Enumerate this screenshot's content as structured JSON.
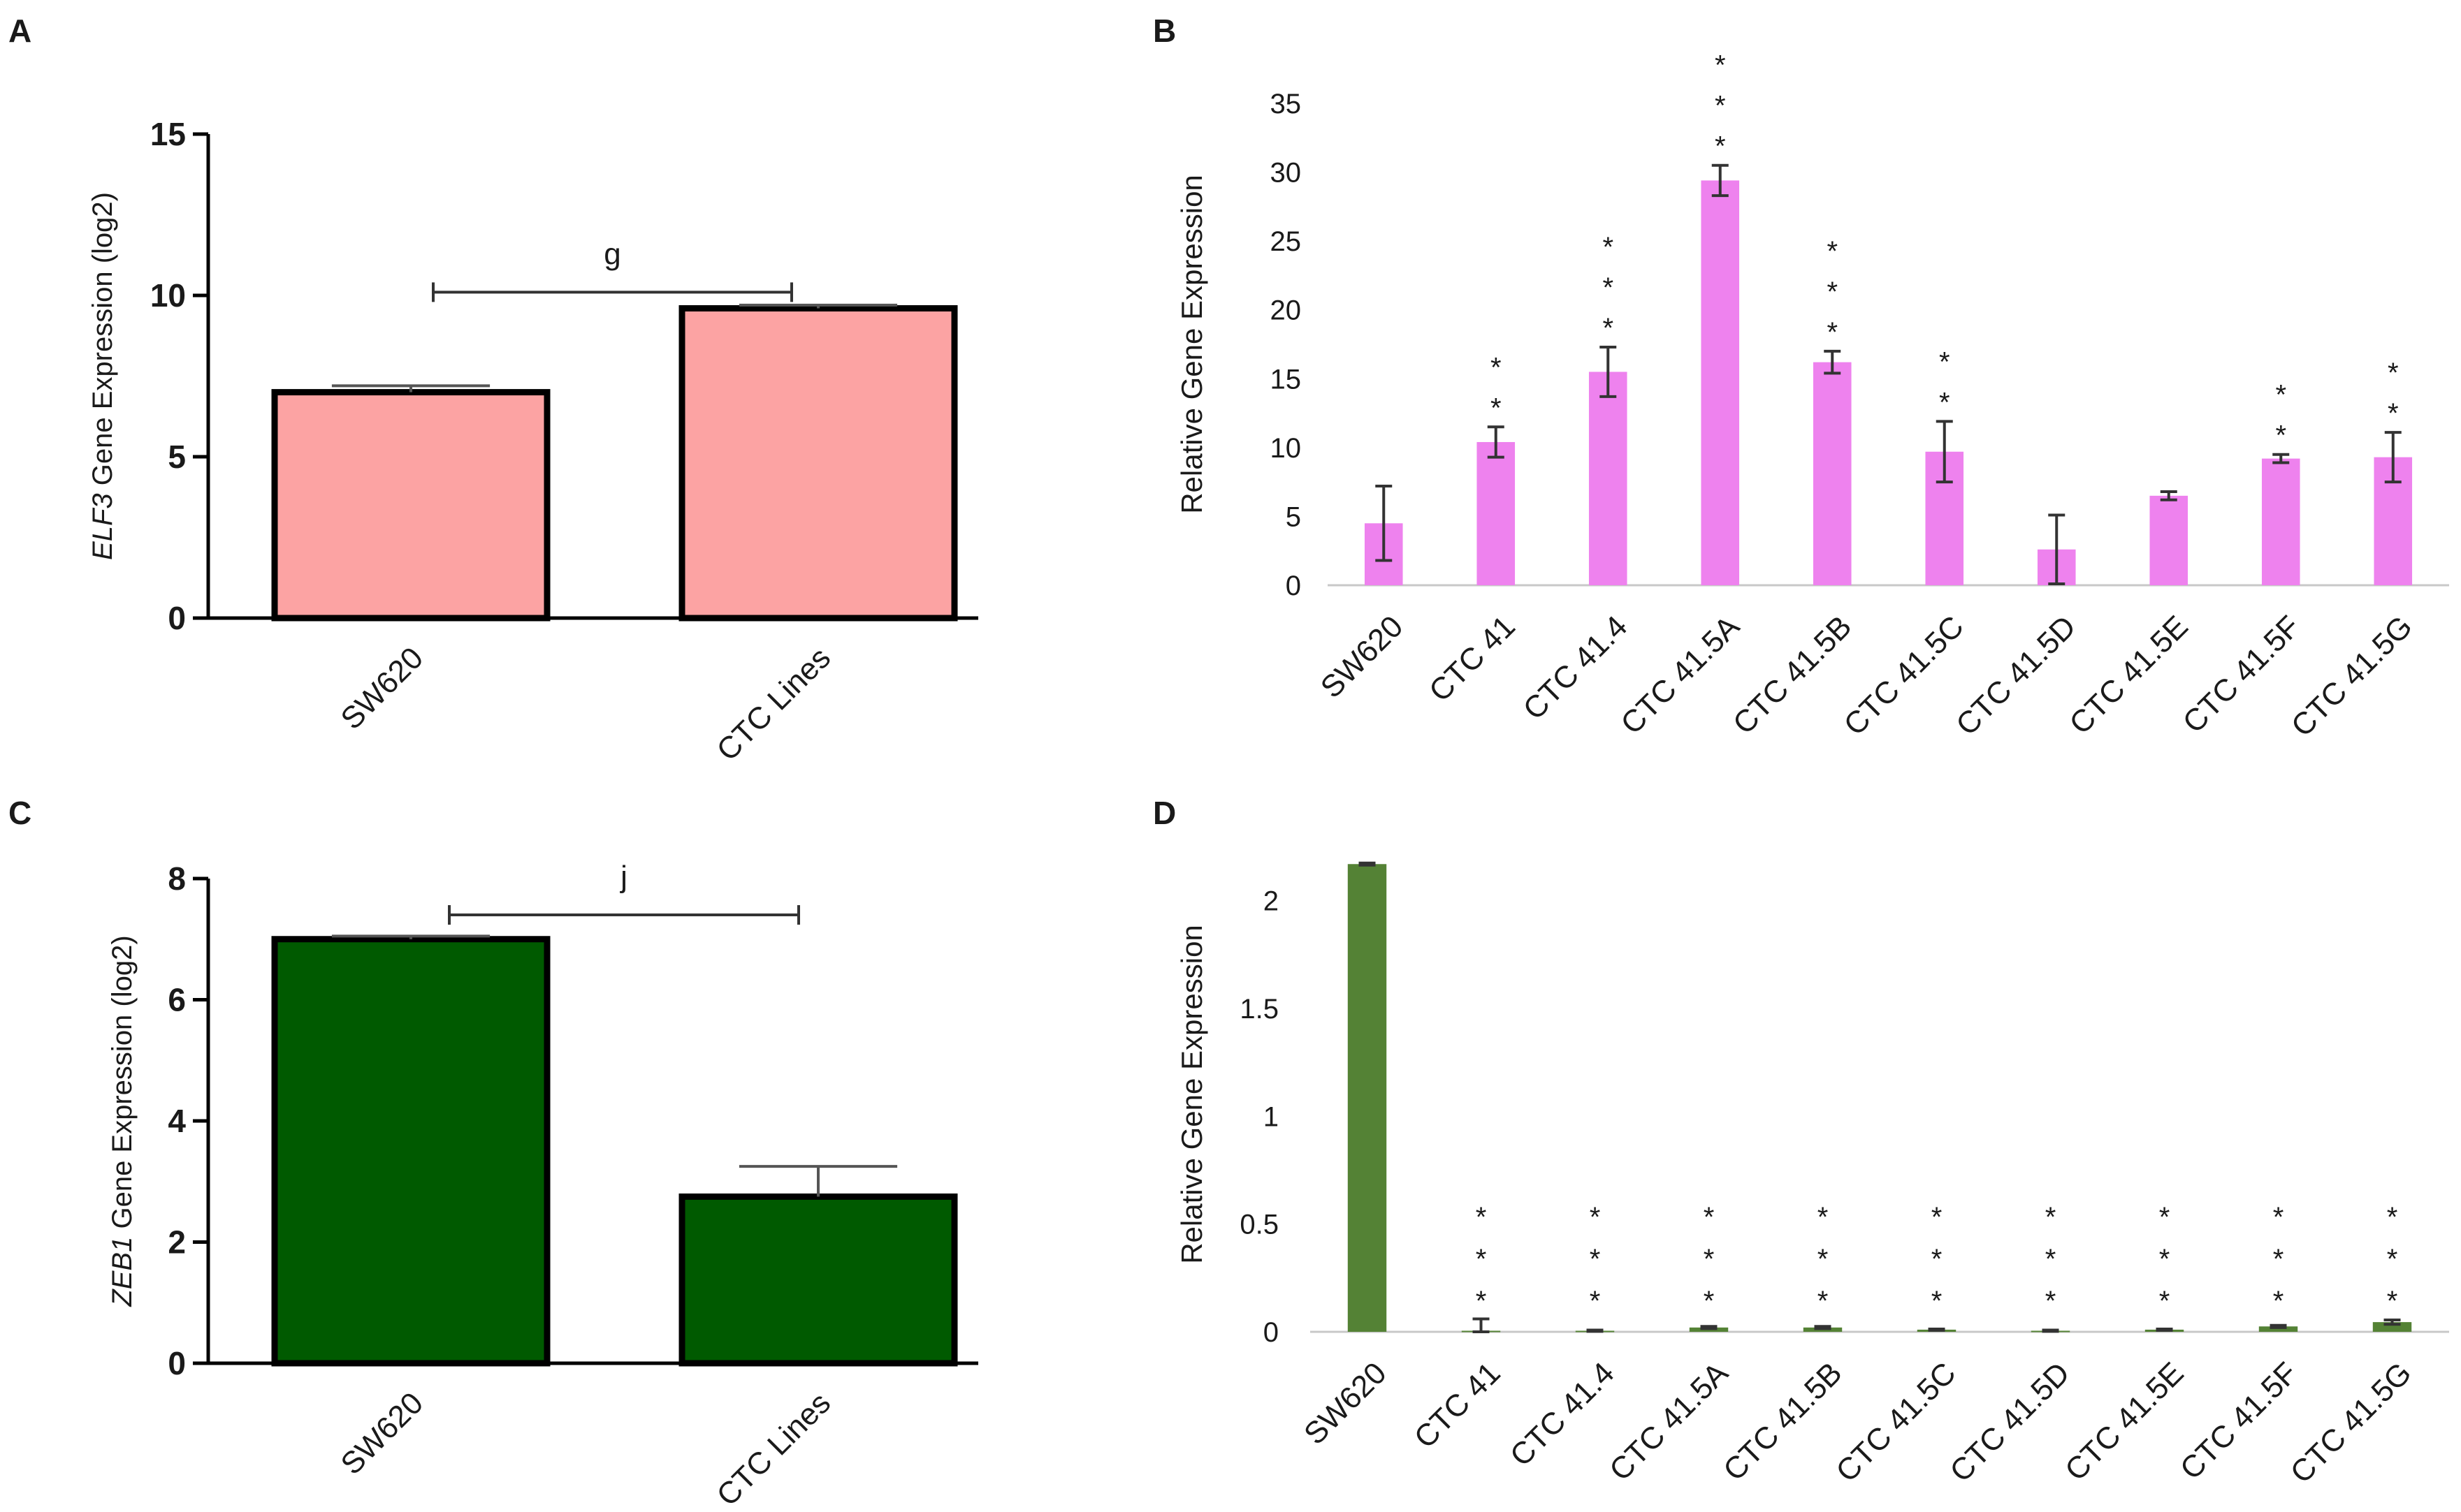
{
  "chart_data": [
    {
      "panel": "A",
      "type": "bar",
      "categories": [
        "SW620",
        "CTC Lines"
      ],
      "values": [
        7.0,
        9.6
      ],
      "error_upper": [
        0.2,
        0.1
      ],
      "ylabel_italic": "ELF3",
      "ylabel_rest": " Gene Expression (log2)",
      "ylim": [
        0,
        15
      ],
      "yticks": [
        0,
        5,
        10,
        15
      ],
      "bar_color": "#fca3a3",
      "bar_edge": "#000000",
      "significance": {
        "label": "g",
        "from": 0,
        "to": 1,
        "y": 10.1
      },
      "grid": false
    },
    {
      "panel": "B",
      "type": "bar",
      "categories": [
        "SW620",
        "CTC 41",
        "CTC 41.4",
        "CTC 41.5A",
        "CTC 41.5B",
        "CTC 41.5C",
        "CTC 41.5D",
        "CTC 41.5E",
        "CTC 41.5F",
        "CTC 41.5G"
      ],
      "values": [
        4.5,
        10.4,
        15.5,
        29.4,
        16.2,
        9.7,
        2.6,
        6.5,
        9.2,
        9.3
      ],
      "errors": [
        2.7,
        1.1,
        1.8,
        1.1,
        0.8,
        2.2,
        2.5,
        0.3,
        0.3,
        1.8
      ],
      "stars": [
        "",
        "**",
        "***",
        "***",
        "***",
        "**",
        "",
        "",
        "**",
        "**"
      ],
      "ylabel": "Relative Gene Expression",
      "ylim": [
        0,
        35
      ],
      "yticks": [
        0,
        5,
        10,
        15,
        20,
        25,
        30,
        35
      ],
      "bar_color": "#ee82ee",
      "grid": false
    },
    {
      "panel": "C",
      "type": "bar",
      "categories": [
        "SW620",
        "CTC Lines"
      ],
      "values": [
        7.0,
        2.75
      ],
      "error_upper": [
        0.05,
        0.5
      ],
      "ylabel_italic": "ZEB1",
      "ylabel_rest": " Gene Expression (log2)",
      "ylim": [
        0,
        8
      ],
      "yticks": [
        0,
        2,
        4,
        6,
        8
      ],
      "bar_color": "#005a00",
      "bar_edge": "#000000",
      "significance": {
        "label": "j",
        "from": 0,
        "to": 1,
        "y": 7.4
      },
      "grid": false
    },
    {
      "panel": "D",
      "type": "bar",
      "categories": [
        "SW620",
        "CTC 41",
        "CTC 41.4",
        "CTC 41.5A",
        "CTC 41.5B",
        "CTC 41.5C",
        "CTC 41.5D",
        "CTC 41.5E",
        "CTC 41.5F",
        "CTC 41.5G"
      ],
      "values": [
        2.17,
        0.005,
        0.005,
        0.02,
        0.02,
        0.01,
        0.005,
        0.01,
        0.025,
        0.045
      ],
      "errors": [
        0.005,
        0.055,
        0.003,
        0.005,
        0.005,
        0.003,
        0.003,
        0.003,
        0.005,
        0.01
      ],
      "stars": [
        "",
        "***",
        "***",
        "***",
        "***",
        "***",
        "***",
        "***",
        "***",
        "***"
      ],
      "ylabel": "Relative Gene Expression",
      "ylim": [
        0,
        2.2
      ],
      "yticks": [
        0,
        0.5,
        1,
        1.5,
        2
      ],
      "ytick_labels": [
        "0",
        "0.5",
        "1",
        "1.5",
        "2"
      ],
      "bar_color": "#548235",
      "grid": false
    }
  ],
  "panel_letters": [
    "A",
    "B",
    "C",
    "D"
  ]
}
